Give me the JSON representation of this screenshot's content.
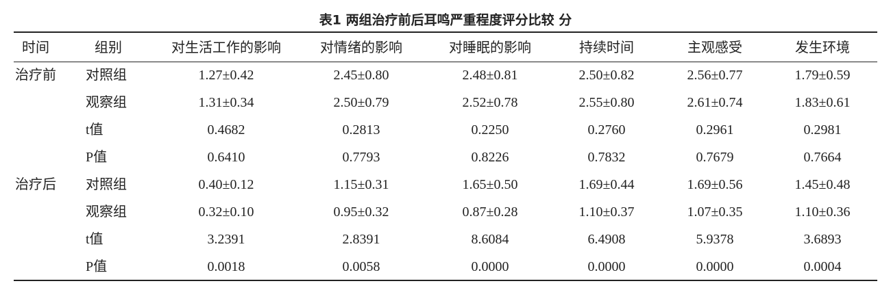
{
  "title": "表1  两组治疗前后耳鸣严重程度评分比较   分",
  "table": {
    "header": [
      "时间",
      "组别",
      "对生活工作的影响",
      "对情绪的影响",
      "对睡眠的影响",
      "持续时间",
      "主观感受",
      "发生环境"
    ],
    "sections": [
      {
        "time": "治疗前",
        "rows": [
          [
            "对照组",
            "1.27±0.42",
            "2.45±0.80",
            "2.48±0.81",
            "2.50±0.82",
            "2.56±0.77",
            "1.79±0.59"
          ],
          [
            "观察组",
            "1.31±0.34",
            "2.50±0.79",
            "2.52±0.78",
            "2.55±0.80",
            "2.61±0.74",
            "1.83±0.61"
          ],
          [
            "t值",
            "0.4682",
            "0.2813",
            "0.2250",
            "0.2760",
            "0.2961",
            "0.2981"
          ],
          [
            "P值",
            "0.6410",
            "0.7793",
            "0.8226",
            "0.7832",
            "0.7679",
            "0.7664"
          ]
        ]
      },
      {
        "time": "治疗后",
        "rows": [
          [
            "对照组",
            "0.40±0.12",
            "1.15±0.31",
            "1.65±0.50",
            "1.69±0.44",
            "1.69±0.56",
            "1.45±0.48"
          ],
          [
            "观察组",
            "0.32±0.10",
            "0.95±0.32",
            "0.87±0.28",
            "1.10±0.37",
            "1.07±0.35",
            "1.10±0.36"
          ],
          [
            "t值",
            "3.2391",
            "2.8391",
            "8.6084",
            "6.4908",
            "5.9378",
            "3.6893"
          ],
          [
            "P值",
            "0.0018",
            "0.0058",
            "0.0000",
            "0.0000",
            "0.0000",
            "0.0004"
          ]
        ]
      }
    ]
  }
}
